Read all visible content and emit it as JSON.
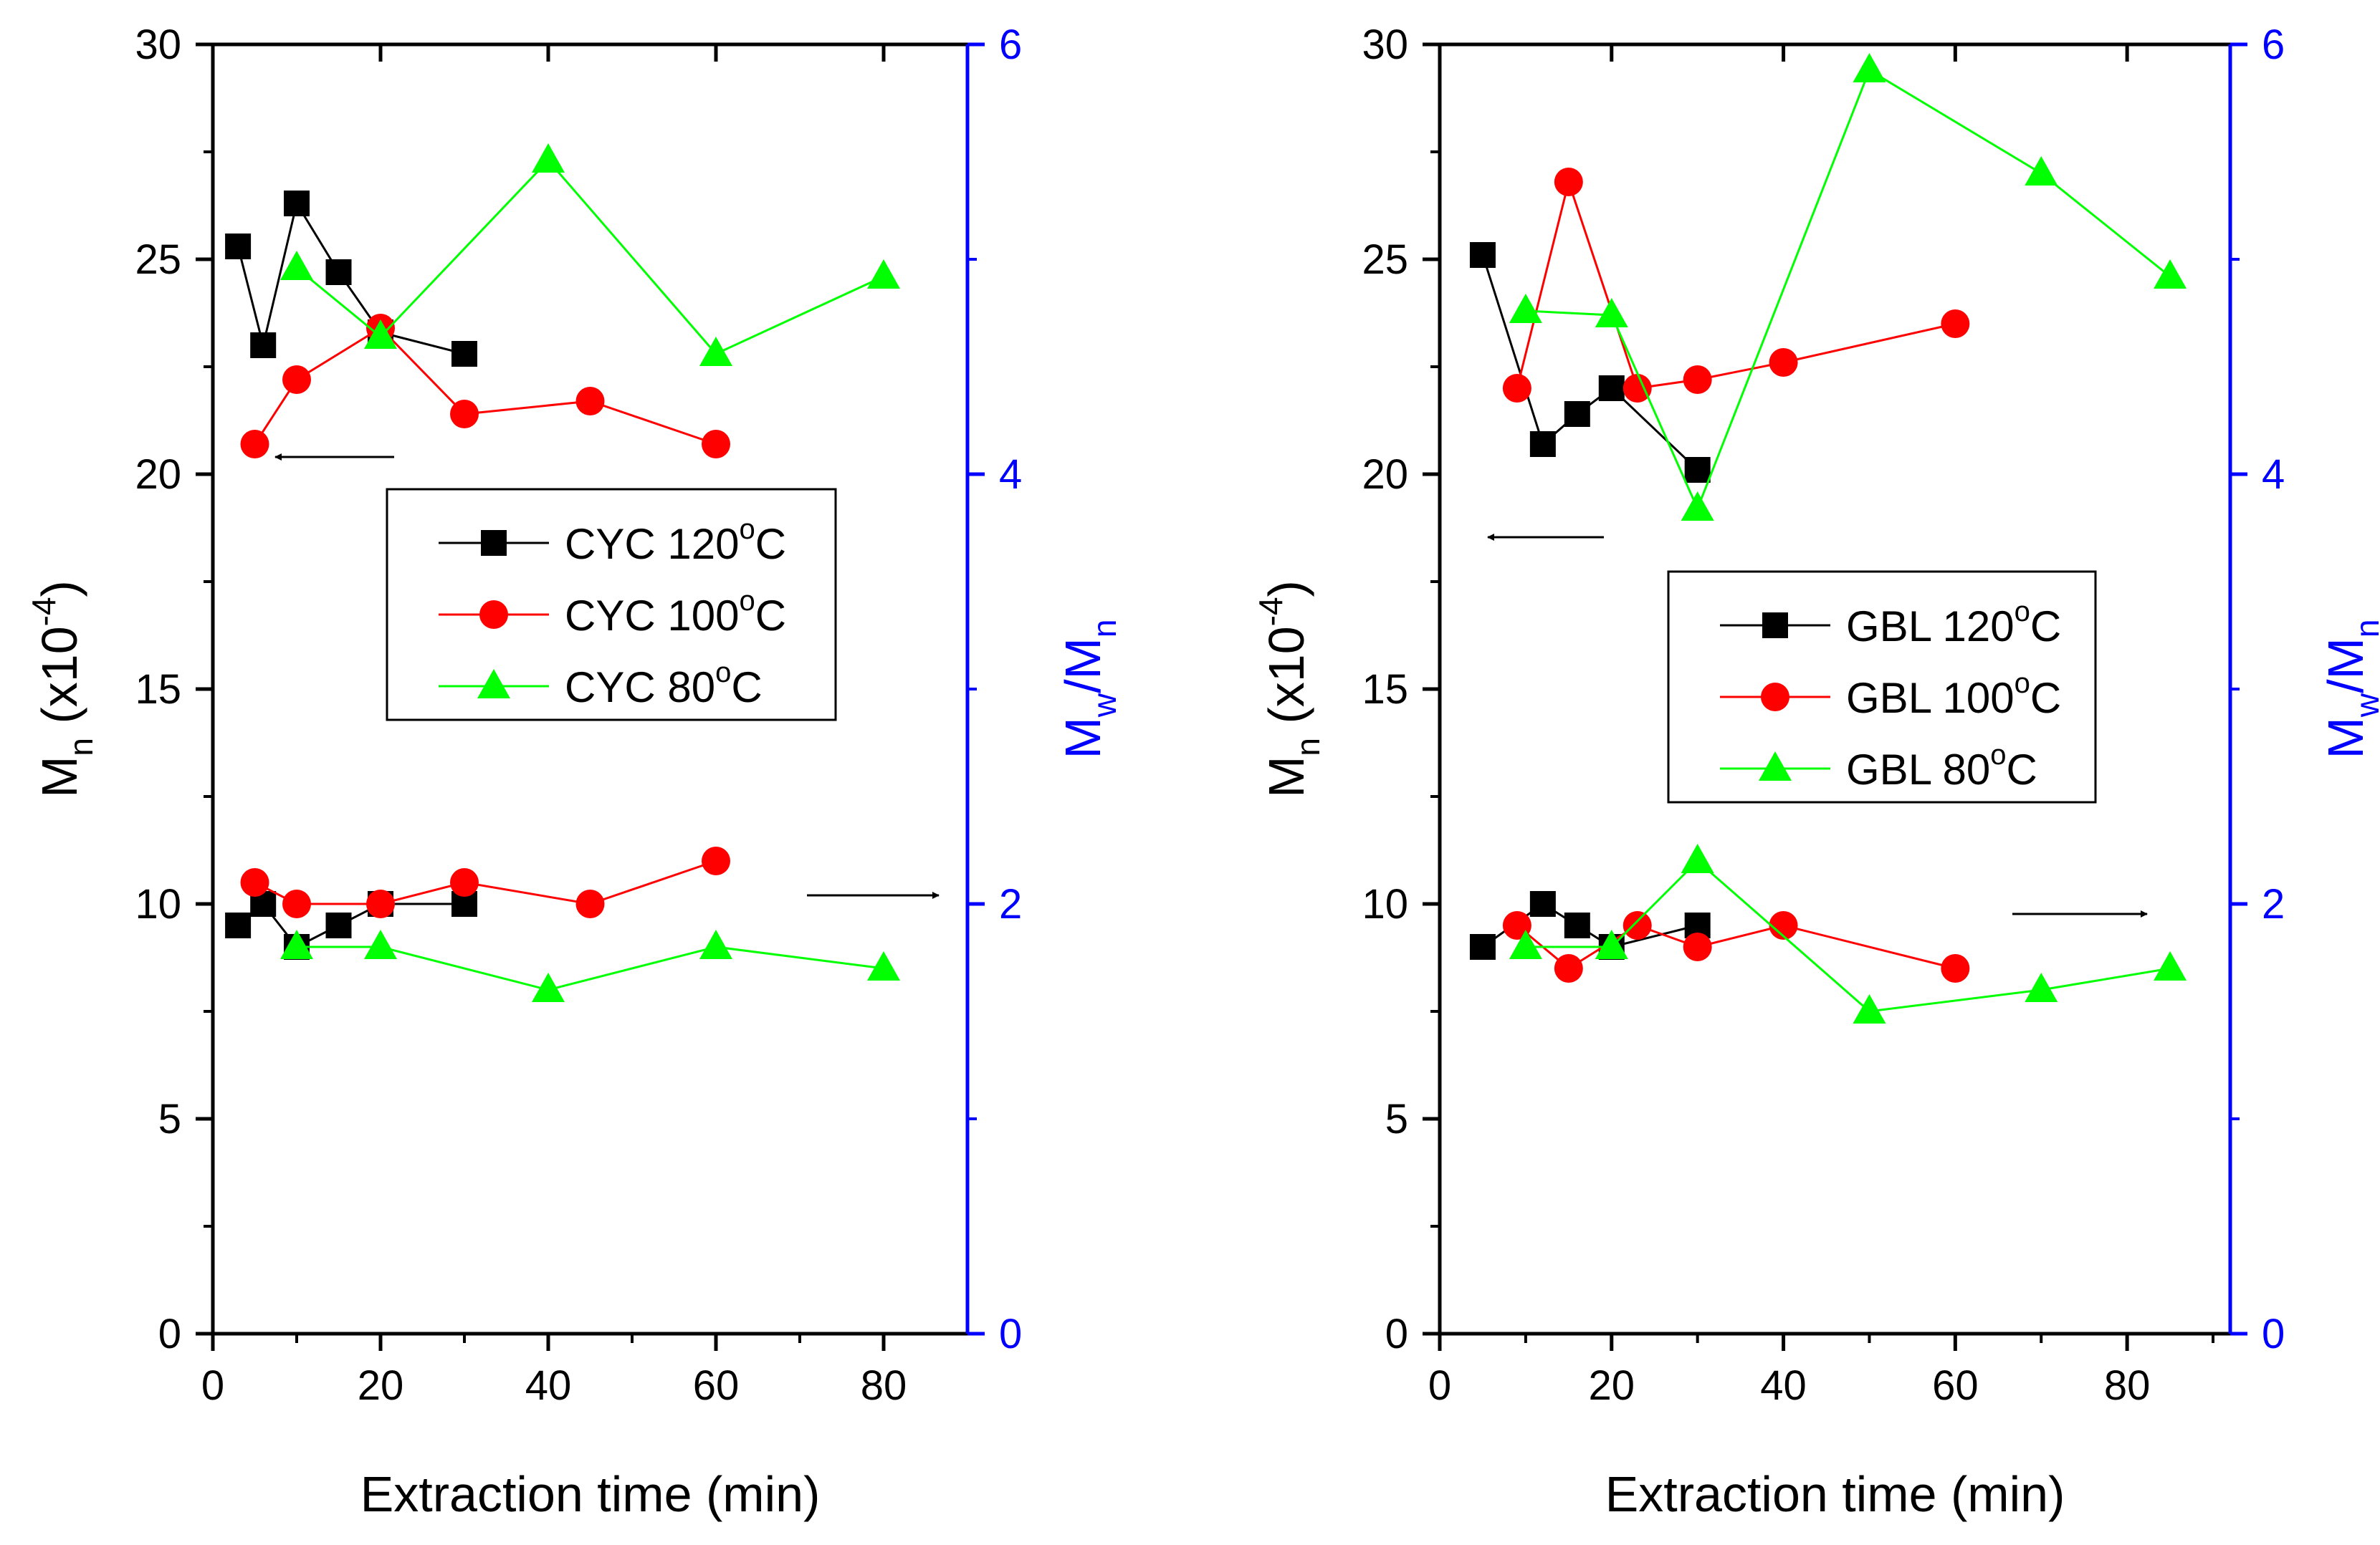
{
  "chart_data": [
    {
      "type": "scatter",
      "xlabel": "Extraction time (min)",
      "ylabel_left": {
        "base": "M",
        "sub": "n",
        "mid": " (x10",
        "sup": "-4",
        "end": ")"
      },
      "ylabel_right": {
        "a": "M",
        "a_sub": "w",
        "slash": "/M",
        "b_sub": "n"
      },
      "xlim": [
        0,
        90
      ],
      "xticks": [
        "0",
        "20",
        "40",
        "60",
        "80"
      ],
      "ylim_left": [
        0,
        30
      ],
      "yticks_left": [
        "0",
        "5",
        "10",
        "15",
        "20",
        "25",
        "30"
      ],
      "ylim_right": [
        0,
        6
      ],
      "yticks_right": [
        "0",
        "2",
        "4",
        "6"
      ],
      "legend_position": "center-right",
      "series": [
        {
          "name": "CYC 120°C",
          "label_text": "CYC 120",
          "sup": "o",
          "suffix": "C",
          "color": "#000000",
          "marker": "square",
          "mn_x": [
            3,
            6,
            10,
            15,
            20,
            30
          ],
          "mn_y": [
            25.3,
            23.0,
            26.3,
            24.7,
            23.3,
            22.8
          ],
          "pdi_x": [
            3,
            6,
            10,
            15,
            20,
            30
          ],
          "pdi_y": [
            1.9,
            2.0,
            1.8,
            1.9,
            2.0,
            2.0
          ]
        },
        {
          "name": "CYC 100°C",
          "label_text": "CYC 100",
          "sup": "o",
          "suffix": "C",
          "color": "#ff0000",
          "marker": "circle",
          "mn_x": [
            5,
            10,
            20,
            30,
            45,
            60
          ],
          "mn_y": [
            20.7,
            22.2,
            23.4,
            21.4,
            21.7,
            20.7
          ],
          "pdi_x": [
            5,
            10,
            20,
            30,
            45,
            60
          ],
          "pdi_y": [
            2.1,
            2.0,
            2.0,
            2.1,
            2.0,
            2.2
          ]
        },
        {
          "name": "CYC 80°C",
          "label_text": "CYC 80",
          "sup": "o",
          "suffix": "C",
          "color": "#00ff00",
          "marker": "triangle",
          "mn_x": [
            10,
            20,
            40,
            60,
            80
          ],
          "mn_y": [
            24.8,
            23.2,
            27.3,
            22.8,
            24.6
          ],
          "pdi_x": [
            10,
            20,
            40,
            60,
            80
          ],
          "pdi_y": [
            1.8,
            1.8,
            1.6,
            1.8,
            1.7
          ]
        }
      ]
    },
    {
      "type": "scatter",
      "xlabel": "Extraction time (min)",
      "ylabel_left": {
        "base": "M",
        "sub": "n",
        "mid": " (x10",
        "sup": "-4",
        "end": ")"
      },
      "ylabel_right": {
        "a": "M",
        "a_sub": "w",
        "slash": "/M",
        "b_sub": "n"
      },
      "xlim": [
        0,
        92
      ],
      "xticks": [
        "0",
        "20",
        "40",
        "60",
        "80"
      ],
      "ylim_left": [
        0,
        30
      ],
      "yticks_left": [
        "0",
        "5",
        "10",
        "15",
        "20",
        "25",
        "30"
      ],
      "ylim_right": [
        0,
        6
      ],
      "yticks_right": [
        "0",
        "2",
        "4",
        "6"
      ],
      "legend_position": "center-right",
      "series": [
        {
          "name": "GBL 120°C",
          "label_text": "GBL 120",
          "sup": "o",
          "suffix": "C",
          "color": "#000000",
          "marker": "square",
          "mn_x": [
            5,
            12,
            16,
            20,
            30
          ],
          "mn_y": [
            25.1,
            20.7,
            21.4,
            22.0,
            20.1
          ],
          "pdi_x": [
            5,
            12,
            16,
            20,
            30
          ],
          "pdi_y": [
            1.8,
            2.0,
            1.9,
            1.8,
            1.9
          ]
        },
        {
          "name": "GBL 100°C",
          "label_text": "GBL 100",
          "sup": "o",
          "suffix": "C",
          "color": "#ff0000",
          "marker": "circle",
          "mn_x": [
            9,
            15,
            23,
            30,
            40,
            60
          ],
          "mn_y": [
            22.0,
            26.8,
            22.0,
            22.2,
            22.6,
            23.5
          ],
          "pdi_x": [
            9,
            15,
            23,
            30,
            40,
            60
          ],
          "pdi_y": [
            1.9,
            1.7,
            1.9,
            1.8,
            1.9,
            1.7
          ]
        },
        {
          "name": "GBL 80°C",
          "label_text": "GBL 80",
          "sup": "o",
          "suffix": "C",
          "color": "#00ff00",
          "marker": "triangle",
          "mn_x": [
            10,
            20,
            30,
            50,
            70,
            85
          ],
          "mn_y": [
            23.8,
            23.7,
            19.2,
            29.4,
            27.0,
            24.6
          ],
          "pdi_x": [
            10,
            20,
            30,
            50,
            70,
            85
          ],
          "pdi_y": [
            1.8,
            1.8,
            2.2,
            1.5,
            1.6,
            1.7
          ]
        }
      ]
    }
  ]
}
